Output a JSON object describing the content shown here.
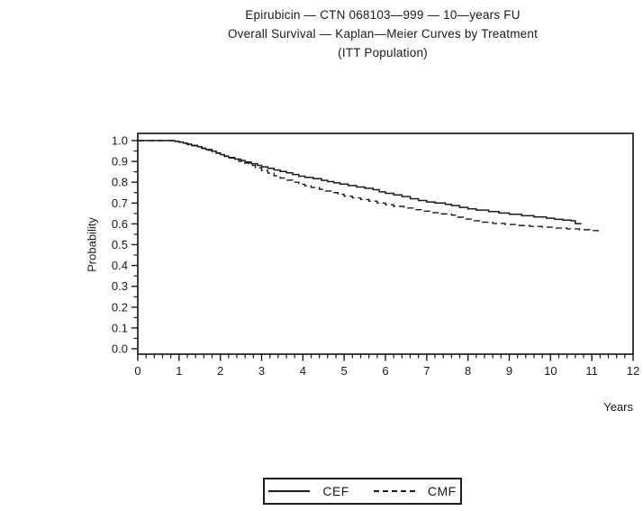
{
  "title": {
    "line1": "Epirubicin — CTN 068103—999 — 10—years FU",
    "line2": "Overall Survival — Kaplan—Meier Curves by Treatment",
    "line3": "(ITT Population)"
  },
  "colors": {
    "line": "#1a1a1a",
    "text": "#1a1a1a",
    "background": "#ffffff"
  },
  "chart_data": {
    "type": "line",
    "subtype": "kaplan-meier-step",
    "title": "Epirubicin — CTN 068103—999 — 10—years FU | Overall Survival — Kaplan—Meier Curves by Treatment | (ITT Population)",
    "xlabel": "Years",
    "ylabel": "Probability",
    "xlim": [
      0,
      12
    ],
    "ylim": [
      0.0,
      1.0
    ],
    "x_ticks": [
      0,
      1,
      2,
      3,
      4,
      5,
      6,
      7,
      8,
      9,
      10,
      11,
      12
    ],
    "y_ticks": [
      1.0,
      0.9,
      0.8,
      0.7,
      0.6,
      0.5,
      0.4,
      0.3,
      0.2,
      0.1,
      0.0
    ],
    "x_minor_step": 0.2,
    "y_minor_step": 0.05,
    "grid": false,
    "frame": true,
    "legend": {
      "position": "bottom-center",
      "entries": [
        {
          "name": "CEF",
          "line": "solid"
        },
        {
          "name": "CMF",
          "line": "dashed"
        }
      ]
    },
    "series": [
      {
        "name": "CEF",
        "line_style": "solid",
        "color": "#1a1a1a",
        "points": [
          [
            0,
            1.0
          ],
          [
            0.8,
            1.0
          ],
          [
            0.9,
            0.997
          ],
          [
            1.0,
            0.993
          ],
          [
            1.1,
            0.988
          ],
          [
            1.2,
            0.983
          ],
          [
            1.3,
            0.977
          ],
          [
            1.45,
            0.971
          ],
          [
            1.55,
            0.964
          ],
          [
            1.65,
            0.957
          ],
          [
            1.8,
            0.949
          ],
          [
            1.9,
            0.941
          ],
          [
            2.0,
            0.933
          ],
          [
            2.1,
            0.926
          ],
          [
            2.2,
            0.919
          ],
          [
            2.35,
            0.911
          ],
          [
            2.5,
            0.904
          ],
          [
            2.6,
            0.897
          ],
          [
            2.75,
            0.889
          ],
          [
            2.9,
            0.881
          ],
          [
            3.0,
            0.874
          ],
          [
            3.15,
            0.867
          ],
          [
            3.3,
            0.859
          ],
          [
            3.45,
            0.852
          ],
          [
            3.6,
            0.845
          ],
          [
            3.75,
            0.837
          ],
          [
            3.9,
            0.829
          ],
          [
            4.05,
            0.823
          ],
          [
            4.25,
            0.817
          ],
          [
            4.45,
            0.809
          ],
          [
            4.6,
            0.803
          ],
          [
            4.75,
            0.797
          ],
          [
            4.9,
            0.791
          ],
          [
            5.1,
            0.784
          ],
          [
            5.3,
            0.777
          ],
          [
            5.5,
            0.771
          ],
          [
            5.7,
            0.764
          ],
          [
            5.85,
            0.754
          ],
          [
            6.0,
            0.747
          ],
          [
            6.2,
            0.739
          ],
          [
            6.4,
            0.731
          ],
          [
            6.6,
            0.721
          ],
          [
            6.8,
            0.712
          ],
          [
            7.0,
            0.705
          ],
          [
            7.2,
            0.7
          ],
          [
            7.45,
            0.694
          ],
          [
            7.6,
            0.688
          ],
          [
            7.8,
            0.679
          ],
          [
            8.0,
            0.672
          ],
          [
            8.2,
            0.666
          ],
          [
            8.5,
            0.659
          ],
          [
            8.75,
            0.652
          ],
          [
            9.0,
            0.646
          ],
          [
            9.3,
            0.639
          ],
          [
            9.6,
            0.633
          ],
          [
            9.9,
            0.627
          ],
          [
            10.1,
            0.622
          ],
          [
            10.3,
            0.618
          ],
          [
            10.5,
            0.615
          ],
          [
            10.6,
            0.601
          ],
          [
            10.75,
            0.601
          ]
        ]
      },
      {
        "name": "CMF",
        "line_style": "dashed",
        "color": "#1a1a1a",
        "points": [
          [
            0,
            1.0
          ],
          [
            0.8,
            1.0
          ],
          [
            0.9,
            0.996
          ],
          [
            1.0,
            0.992
          ],
          [
            1.1,
            0.987
          ],
          [
            1.2,
            0.981
          ],
          [
            1.3,
            0.975
          ],
          [
            1.45,
            0.969
          ],
          [
            1.55,
            0.962
          ],
          [
            1.65,
            0.954
          ],
          [
            1.8,
            0.947
          ],
          [
            1.9,
            0.939
          ],
          [
            2.0,
            0.931
          ],
          [
            2.1,
            0.924
          ],
          [
            2.2,
            0.916
          ],
          [
            2.35,
            0.909
          ],
          [
            2.45,
            0.901
          ],
          [
            2.55,
            0.892
          ],
          [
            2.7,
            0.881
          ],
          [
            2.85,
            0.869
          ],
          [
            3.0,
            0.856
          ],
          [
            3.15,
            0.844
          ],
          [
            3.3,
            0.831
          ],
          [
            3.45,
            0.82
          ],
          [
            3.6,
            0.81
          ],
          [
            3.75,
            0.8
          ],
          [
            3.9,
            0.79
          ],
          [
            4.05,
            0.782
          ],
          [
            4.2,
            0.775
          ],
          [
            4.4,
            0.766
          ],
          [
            4.55,
            0.758
          ],
          [
            4.7,
            0.75
          ],
          [
            4.85,
            0.742
          ],
          [
            5.0,
            0.733
          ],
          [
            5.2,
            0.725
          ],
          [
            5.4,
            0.717
          ],
          [
            5.6,
            0.709
          ],
          [
            5.8,
            0.7
          ],
          [
            6.0,
            0.692
          ],
          [
            6.2,
            0.684
          ],
          [
            6.45,
            0.676
          ],
          [
            6.7,
            0.668
          ],
          [
            6.9,
            0.661
          ],
          [
            7.1,
            0.654
          ],
          [
            7.35,
            0.648
          ],
          [
            7.6,
            0.642
          ],
          [
            7.75,
            0.632
          ],
          [
            7.9,
            0.623
          ],
          [
            8.1,
            0.615
          ],
          [
            8.35,
            0.608
          ],
          [
            8.6,
            0.602
          ],
          [
            8.9,
            0.597
          ],
          [
            9.2,
            0.592
          ],
          [
            9.5,
            0.588
          ],
          [
            9.8,
            0.584
          ],
          [
            10.1,
            0.58
          ],
          [
            10.4,
            0.576
          ],
          [
            10.7,
            0.572
          ],
          [
            10.95,
            0.568
          ],
          [
            11.15,
            0.564
          ]
        ]
      }
    ]
  }
}
